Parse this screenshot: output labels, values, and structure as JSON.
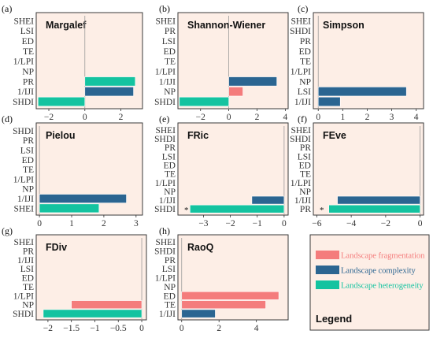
{
  "colors": {
    "fragmentation": "#f47c7c",
    "complexity": "#2b6591",
    "heterogeneity": "#14c3a0"
  },
  "legend": {
    "title": "Legend",
    "items": [
      {
        "label": "Landscape fragmentation",
        "group": "fragmentation"
      },
      {
        "label": "Landscape complexity",
        "group": "complexity"
      },
      {
        "label": "Landscape heterogeneity",
        "group": "heterogeneity"
      }
    ]
  },
  "chart_data": [
    {
      "type": "bar",
      "panel": "(a)",
      "title": "Margalef",
      "categories": [
        "SHEI",
        "LSI",
        "ED",
        "TE",
        "1/LPI",
        "NP",
        "PR",
        "1/IJI",
        "SHDI"
      ],
      "bars": [
        {
          "category": "PR",
          "value": 2.8,
          "group": "heterogeneity"
        },
        {
          "category": "1/IJI",
          "value": 2.7,
          "group": "complexity"
        },
        {
          "category": "SHDI",
          "value": -2.6,
          "group": "heterogeneity"
        }
      ],
      "xlim": [
        -2.7,
        3.2
      ],
      "xticks": [
        -2,
        0,
        2
      ],
      "sig": []
    },
    {
      "type": "bar",
      "panel": "(b)",
      "title": "Shannon-Wiener",
      "categories": [
        "SHEI",
        "PR",
        "LSI",
        "ED",
        "TE",
        "1/LPI",
        "1/IJI",
        "NP",
        "SHDI"
      ],
      "bars": [
        {
          "category": "1/IJI",
          "value": 3.4,
          "group": "complexity"
        },
        {
          "category": "NP",
          "value": 1.0,
          "group": "fragmentation"
        },
        {
          "category": "SHDI",
          "value": -3.5,
          "group": "heterogeneity"
        }
      ],
      "xlim": [
        -3.6,
        4.2
      ],
      "xticks": [
        -2,
        0,
        2,
        4
      ],
      "sig": []
    },
    {
      "type": "bar",
      "panel": "(c)",
      "title": "Simpson",
      "categories": [
        "SHEI",
        "SHDI",
        "PR",
        "ED",
        "TE",
        "1/LPI",
        "NP",
        "LSI",
        "1/IJI"
      ],
      "bars": [
        {
          "category": "LSI",
          "value": 3.6,
          "group": "complexity"
        },
        {
          "category": "1/IJI",
          "value": 0.9,
          "group": "complexity"
        }
      ],
      "xlim": [
        -0.2,
        4.3
      ],
      "xticks": [
        0,
        1,
        2,
        3,
        4
      ],
      "sig": []
    },
    {
      "type": "bar",
      "panel": "(d)",
      "title": "Pielou",
      "categories": [
        "SHDI",
        "PR",
        "LSI",
        "ED",
        "TE",
        "1/LPI",
        "NP",
        "1/IJI",
        "SHEI"
      ],
      "bars": [
        {
          "category": "1/IJI",
          "value": 2.7,
          "group": "complexity"
        },
        {
          "category": "SHEI",
          "value": 1.85,
          "group": "heterogeneity"
        }
      ],
      "xlim": [
        -0.1,
        3.2
      ],
      "xticks": [
        0,
        1,
        2,
        3
      ],
      "sig": []
    },
    {
      "type": "bar",
      "panel": "(e)",
      "title": "FRic",
      "categories": [
        "SHEI",
        "SHDI",
        "PR",
        "LSI",
        "ED",
        "TE",
        "1/LPI",
        "NP",
        "1/IJI",
        "SHDI"
      ],
      "bars": [
        {
          "category": "1/IJI",
          "value": -1.2,
          "group": "complexity"
        },
        {
          "category": "SHDI",
          "value": -3.5,
          "group": "heterogeneity"
        }
      ],
      "xlim": [
        -3.95,
        0.15
      ],
      "xticks": [
        -3,
        -2,
        -1,
        0
      ],
      "sig": [
        "*"
      ]
    },
    {
      "type": "bar",
      "panel": "(f)",
      "title": "FEve",
      "categories": [
        "SHEI",
        "SHDI",
        "PR",
        "LSI",
        "ED",
        "TE",
        "1/LPI",
        "NP",
        "1/IJI",
        "PR"
      ],
      "bars": [
        {
          "category": "1/IJI",
          "value": -4.8,
          "group": "complexity"
        },
        {
          "category": "PR",
          "value": -5.3,
          "group": "heterogeneity"
        }
      ],
      "xlim": [
        -6.2,
        0.2
      ],
      "xticks": [
        -6,
        -4,
        -2,
        0
      ],
      "sig": [
        "*"
      ]
    },
    {
      "type": "bar",
      "panel": "(g)",
      "title": "FDiv",
      "categories": [
        "SHEI",
        "PR",
        "1/IJI",
        "LSI",
        "ED",
        "TE",
        "1/LPI",
        "NP",
        "SHDI"
      ],
      "bars": [
        {
          "category": "NP",
          "value": -1.5,
          "group": "fragmentation"
        },
        {
          "category": "SHDI",
          "value": -2.1,
          "group": "heterogeneity"
        }
      ],
      "xlim": [
        -2.25,
        0.1
      ],
      "xticks": [
        -2.0,
        -1.5,
        -1.0,
        -0.5,
        0.0
      ],
      "sig": []
    },
    {
      "type": "bar",
      "panel": "(h)",
      "title": "RaoQ",
      "categories": [
        "SHEI",
        "SHDI",
        "PR",
        "LSI",
        "1/LPI",
        "NP",
        "ED",
        "TE",
        "1/IJI"
      ],
      "bars": [
        {
          "category": "ED",
          "value": 5.2,
          "group": "fragmentation"
        },
        {
          "category": "TE",
          "value": 4.5,
          "group": "fragmentation"
        },
        {
          "category": "1/IJI",
          "value": 1.8,
          "group": "complexity"
        }
      ],
      "xlim": [
        -0.2,
        5.7
      ],
      "xticks": [
        0,
        2,
        4
      ],
      "sig": []
    }
  ]
}
